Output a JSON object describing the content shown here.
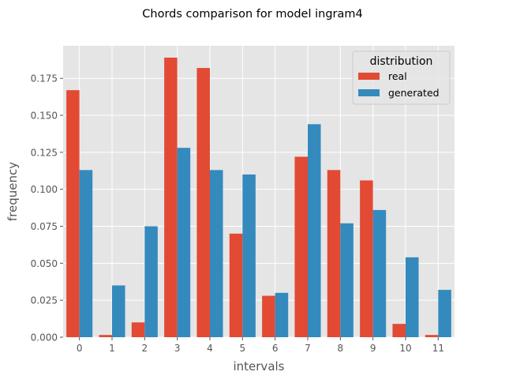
{
  "chart_data": {
    "type": "bar",
    "title": "Chords comparison for model ingram4",
    "xlabel": "intervals",
    "ylabel": "frequency",
    "categories": [
      "0",
      "1",
      "2",
      "3",
      "4",
      "5",
      "6",
      "7",
      "8",
      "9",
      "10",
      "11"
    ],
    "ylim": [
      0,
      0.197
    ],
    "yticks": [
      0.0,
      0.025,
      0.05,
      0.075,
      0.1,
      0.125,
      0.15,
      0.175
    ],
    "ytick_labels": [
      "0.000",
      "0.025",
      "0.050",
      "0.075",
      "0.100",
      "0.125",
      "0.150",
      "0.175"
    ],
    "grid": true,
    "legend": {
      "title": "distribution",
      "position": "top-right"
    },
    "series": [
      {
        "name": "real",
        "color": "#E24A33",
        "values": [
          0.167,
          0.0015,
          0.01,
          0.189,
          0.182,
          0.07,
          0.028,
          0.122,
          0.113,
          0.106,
          0.009,
          0.0015
        ]
      },
      {
        "name": "generated",
        "color": "#348ABD",
        "values": [
          0.113,
          0.035,
          0.075,
          0.128,
          0.113,
          0.11,
          0.03,
          0.144,
          0.077,
          0.086,
          0.054,
          0.032
        ]
      }
    ]
  }
}
